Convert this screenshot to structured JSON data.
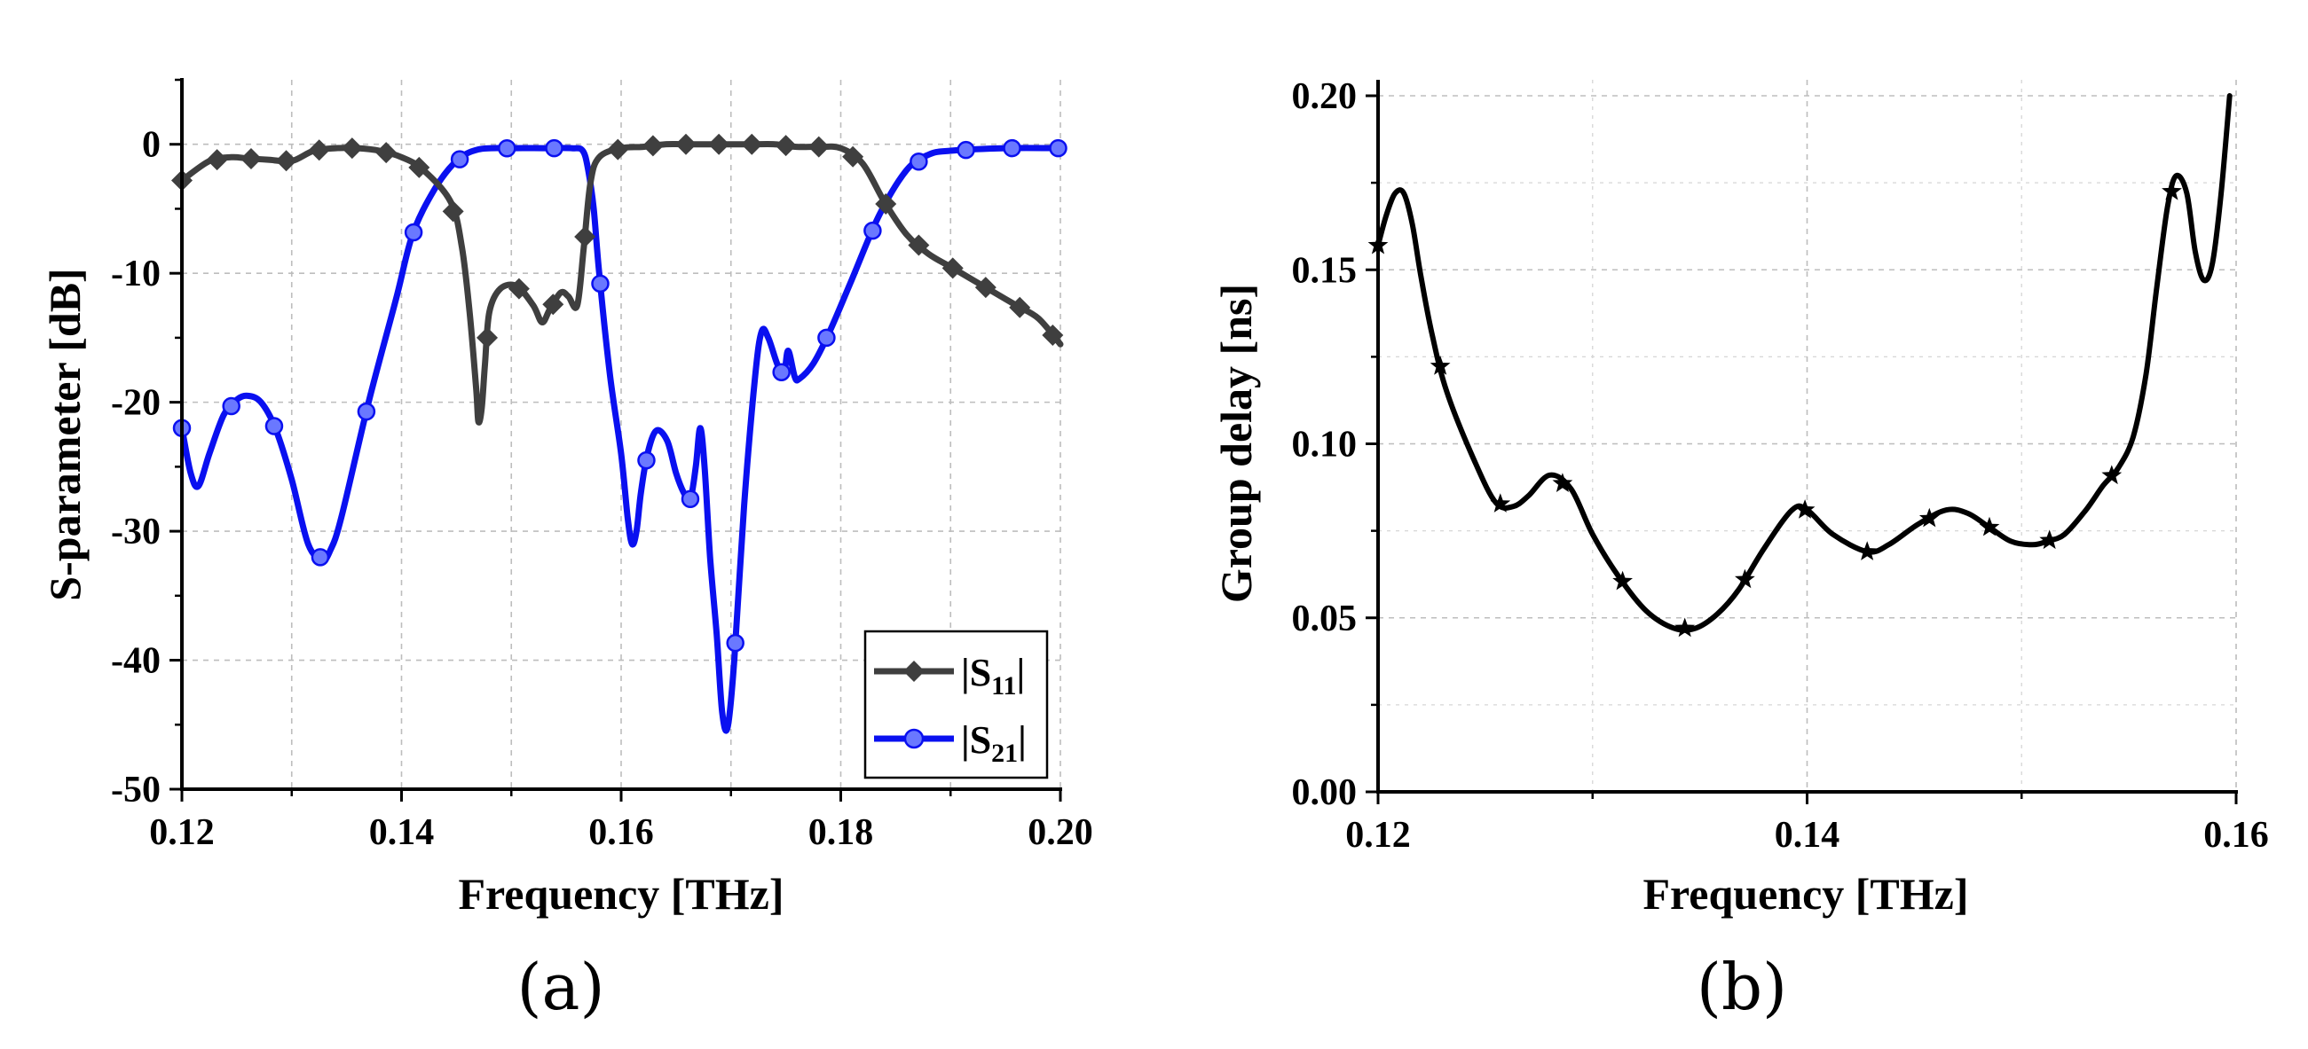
{
  "chart_data": [
    {
      "panel": "(a)",
      "type": "line",
      "xlabel": "Frequency [THz]",
      "ylabel": "S-parameter [dB]",
      "xlim": [
        0.12,
        0.2
      ],
      "ylim": [
        -50,
        5
      ],
      "xticks": [
        "0.12",
        "0.14",
        "0.16",
        "0.18",
        "0.20"
      ],
      "yticks": [
        "0",
        "-10",
        "-20",
        "-30",
        "-40",
        "-50"
      ],
      "grid": true,
      "legend": "bottom-right",
      "series": [
        {
          "name": "|S11|",
          "label_main": "|S",
          "label_sub": "11",
          "label_end": "|",
          "color": "#3f3f3f",
          "marker": "diamond",
          "x": [
            0.12,
            0.1225,
            0.1245,
            0.126,
            0.128,
            0.13,
            0.132,
            0.134,
            0.136,
            0.138,
            0.14,
            0.142,
            0.1445,
            0.1455,
            0.1462,
            0.1468,
            0.147,
            0.1473,
            0.1476,
            0.148,
            0.149,
            0.1505,
            0.152,
            0.1528,
            0.1535,
            0.1545,
            0.1552,
            0.156,
            0.1566,
            0.1572,
            0.158,
            0.16,
            0.162,
            0.164,
            0.166,
            0.168,
            0.17,
            0.172,
            0.174,
            0.176,
            0.178,
            0.18,
            0.182,
            0.184,
            0.186,
            0.188,
            0.19,
            0.192,
            0.194,
            0.196,
            0.198,
            0.2
          ],
          "y": [
            -2.8,
            -1.3,
            -1.0,
            -1.1,
            -1.2,
            -1.3,
            -0.5,
            -0.3,
            -0.3,
            -0.5,
            -1.0,
            -2.0,
            -4.5,
            -8.0,
            -13,
            -19,
            -21.5,
            -20.5,
            -17,
            -13,
            -11.2,
            -11.0,
            -12.5,
            -13.8,
            -12.8,
            -11.5,
            -11.8,
            -12.5,
            -8,
            -3,
            -1.0,
            -0.3,
            -0.2,
            0,
            0,
            0,
            0,
            0,
            0,
            -0.2,
            -0.2,
            -0.3,
            -1.5,
            -4.5,
            -7.0,
            -8.5,
            -9.5,
            -10.5,
            -11.5,
            -12.5,
            -13.5,
            -15.5
          ],
          "markers_x": [
            0.12,
            0.1232,
            0.1263,
            0.1295,
            0.1325,
            0.1355,
            0.1386,
            0.1416,
            0.1447,
            0.1478,
            0.1507,
            0.1538,
            0.1567,
            0.1597,
            0.1629,
            0.1659,
            0.1689,
            0.1719,
            0.175,
            0.178,
            0.1811,
            0.1841,
            0.1871,
            0.1902,
            0.1932,
            0.1963,
            0.1993
          ]
        },
        {
          "name": "|S21|",
          "label_main": "|S",
          "label_sub": "21",
          "label_end": "|",
          "color": "#0a10f0",
          "marker": "circle",
          "x": [
            0.12,
            0.1208,
            0.1215,
            0.1225,
            0.1238,
            0.125,
            0.126,
            0.1272,
            0.1285,
            0.13,
            0.1315,
            0.1328,
            0.1335,
            0.1345,
            0.137,
            0.1395,
            0.141,
            0.143,
            0.145,
            0.147,
            0.15,
            0.153,
            0.1555,
            0.1565,
            0.157,
            0.1575,
            0.158,
            0.159,
            0.16,
            0.1606,
            0.161,
            0.1614,
            0.1618,
            0.1624,
            0.1632,
            0.1642,
            0.165,
            0.1657,
            0.1663,
            0.1668,
            0.1672,
            0.1676,
            0.1681,
            0.1687,
            0.1692,
            0.1697,
            0.1703,
            0.1712,
            0.1722,
            0.1728,
            0.1734,
            0.1742,
            0.1748,
            0.1752,
            0.1758,
            0.1762,
            0.1775,
            0.179,
            0.181,
            0.1835,
            0.186,
            0.188,
            0.19,
            0.195,
            0.2
          ],
          "y": [
            -22,
            -25.5,
            -26.5,
            -24,
            -21,
            -19.8,
            -19.5,
            -20,
            -22,
            -26,
            -31,
            -32.2,
            -31.5,
            -29,
            -20,
            -12,
            -7,
            -3.5,
            -1.3,
            -0.4,
            -0.3,
            -0.3,
            -0.3,
            -0.5,
            -2,
            -5,
            -10,
            -18,
            -24,
            -29,
            -31,
            -30,
            -27,
            -24,
            -22.2,
            -23,
            -25.5,
            -27,
            -27.5,
            -25,
            -22,
            -25,
            -32,
            -38,
            -44,
            -45.2,
            -40,
            -28,
            -18,
            -14.5,
            -15,
            -17,
            -18,
            -16,
            -18,
            -18.2,
            -17,
            -14.5,
            -10.5,
            -5.5,
            -2.0,
            -0.8,
            -0.5,
            -0.3,
            -0.3
          ],
          "markers_x": [
            0.12,
            0.1245,
            0.1284,
            0.1326,
            0.1368,
            0.1411,
            0.1453,
            0.1496,
            0.1539,
            0.1581,
            0.1623,
            0.1663,
            0.1704,
            0.1746,
            0.1787,
            0.1829,
            0.1871,
            0.1914,
            0.1956,
            0.1998
          ]
        }
      ]
    },
    {
      "panel": "(b)",
      "type": "line",
      "xlabel": "Frequency [THz]",
      "ylabel": "Group delay [ns]",
      "xlim": [
        0.12,
        0.16
      ],
      "ylim": [
        0.0,
        0.2
      ],
      "xticks": [
        "0.12",
        "0.14",
        "0.16"
      ],
      "yticks": [
        "0.20",
        "0.15",
        "0.10",
        "0.05",
        "0.00"
      ],
      "grid": true,
      "series": [
        {
          "name": "Group delay",
          "color": "#000000",
          "marker": "star",
          "x": [
            0.12,
            0.1204,
            0.1208,
            0.1212,
            0.1216,
            0.122,
            0.1225,
            0.1232,
            0.1245,
            0.1255,
            0.1263,
            0.127,
            0.128,
            0.129,
            0.13,
            0.1312,
            0.1325,
            0.1338,
            0.1348,
            0.1358,
            0.1368,
            0.138,
            0.1393,
            0.14,
            0.1412,
            0.1428,
            0.1438,
            0.1452,
            0.1465,
            0.1475,
            0.1485,
            0.1495,
            0.1505,
            0.1512,
            0.152,
            0.153,
            0.1538,
            0.1545,
            0.1552,
            0.1558,
            0.1563,
            0.1568,
            0.1572,
            0.1577,
            0.1581,
            0.1585,
            0.1589,
            0.1593,
            0.1597
          ],
          "y": [
            0.157,
            0.166,
            0.172,
            0.172,
            0.163,
            0.148,
            0.132,
            0.115,
            0.095,
            0.083,
            0.082,
            0.085,
            0.091,
            0.087,
            0.074,
            0.062,
            0.052,
            0.047,
            0.047,
            0.051,
            0.058,
            0.07,
            0.081,
            0.081,
            0.074,
            0.069,
            0.071,
            0.077,
            0.081,
            0.08,
            0.076,
            0.072,
            0.071,
            0.072,
            0.074,
            0.081,
            0.088,
            0.093,
            0.102,
            0.12,
            0.145,
            0.168,
            0.177,
            0.172,
            0.155,
            0.147,
            0.152,
            0.172,
            0.2
          ],
          "markers_x": [
            0.12,
            0.1229,
            0.1257,
            0.1286,
            0.1314,
            0.1343,
            0.1371,
            0.1399,
            0.1428,
            0.1457,
            0.1485,
            0.1513,
            0.1542,
            0.157
          ]
        }
      ]
    }
  ]
}
